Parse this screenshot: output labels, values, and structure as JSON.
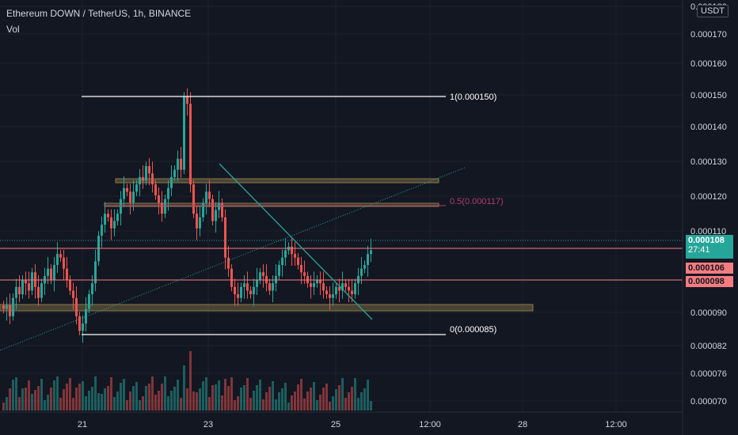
{
  "header": {
    "symbol_line": "Ethereum DOWN / TetherUS, 1h, BINANCE",
    "volume_label": "Vol",
    "currency_badge": "USDT"
  },
  "colors": {
    "background": "#131722",
    "up": "#26a69a",
    "down": "#ef5350",
    "fib_line": "#ffffff",
    "fib_mid": "#b03a6e",
    "zone": "#8a7a4a",
    "trendline": "#26a69a",
    "grid": "#1e222d",
    "axis_text": "#d1d4dc",
    "price_tag_current": "#26a69a",
    "price_tag_level": "#f77c80"
  },
  "chart_data": {
    "type": "candlestick",
    "y_axis": {
      "ticks": [
        "0.000180",
        "0.000170",
        "0.000160",
        "0.000150",
        "0.000140",
        "0.000130",
        "0.000120",
        "0.000110",
        "0.000090",
        "0.000082",
        "0.000076",
        "0.000070"
      ]
    },
    "x_axis": {
      "ticks": [
        "21",
        "23",
        "25",
        "12:00",
        "28",
        "12:00"
      ]
    },
    "annotations": {
      "fib_top": "1(0.000150)",
      "fib_mid": "0.5(0.000117)",
      "fib_bottom": "0(0.000085)"
    },
    "price_tags": {
      "current_price": "0.000108",
      "countdown": "27:41",
      "level_1": "0.000106",
      "level_2": "0.000098"
    },
    "closes": [
      92,
      93,
      90,
      95,
      98,
      96,
      100,
      99,
      97,
      102,
      98,
      95,
      99,
      101,
      103,
      100,
      104,
      107,
      106,
      103,
      100,
      97,
      95,
      90,
      86,
      88,
      92,
      96,
      99,
      105,
      112,
      115,
      118,
      117,
      114,
      116,
      118,
      122,
      125,
      124,
      121,
      124,
      126,
      128,
      127,
      131,
      129,
      126,
      123,
      121,
      118,
      122,
      125,
      128,
      130,
      133,
      130,
      150,
      148,
      126,
      118,
      114,
      117,
      121,
      124,
      122,
      116,
      119,
      121,
      117,
      106,
      103,
      98,
      96,
      95,
      98,
      99,
      97,
      96,
      98,
      100,
      102,
      101,
      99,
      97,
      99,
      101,
      104,
      106,
      108,
      109,
      107,
      106,
      104,
      102,
      101,
      99,
      98,
      99,
      100,
      99,
      97,
      96,
      95,
      96,
      98,
      97,
      99,
      98,
      97,
      96,
      99,
      101,
      103,
      104,
      107,
      108
    ]
  }
}
